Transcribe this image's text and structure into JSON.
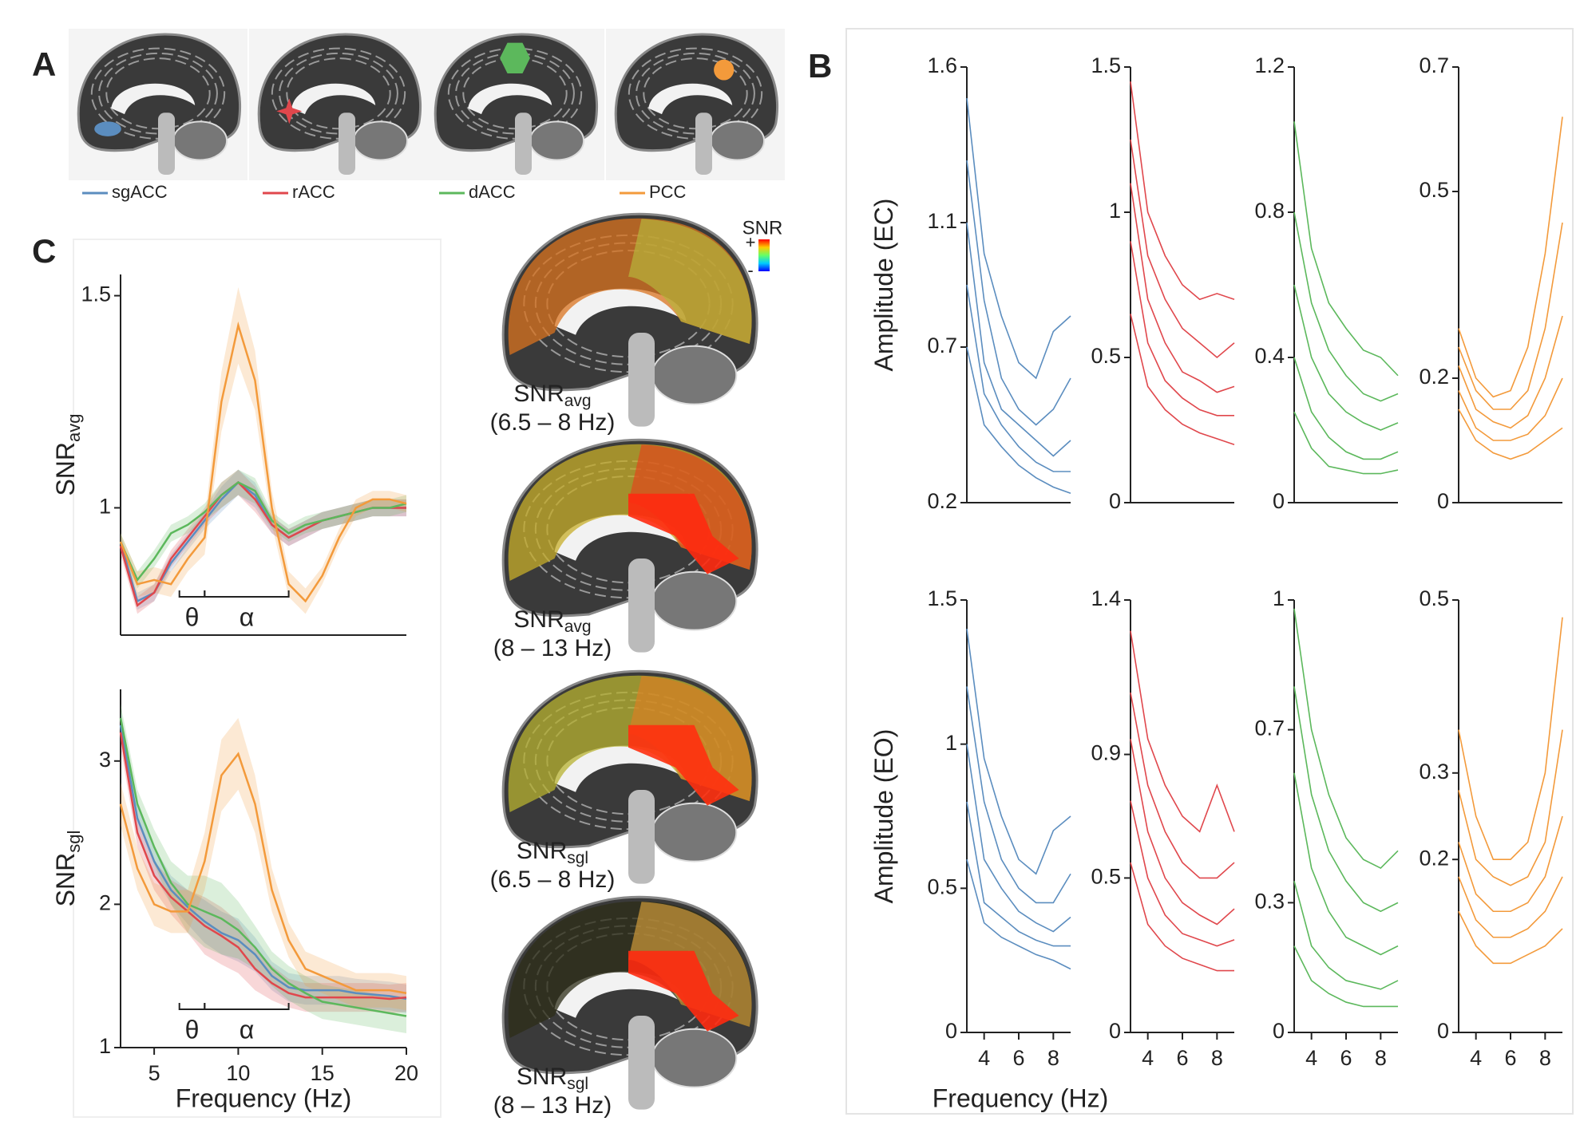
{
  "figure": {
    "panel_labels": [
      "A",
      "B",
      "C"
    ]
  },
  "panel_a": {
    "regions": [
      {
        "name": "sgACC",
        "color": "#5b8dbf"
      },
      {
        "name": "rACC",
        "color": "#e0474c"
      },
      {
        "name": "dACC",
        "color": "#5cb85c"
      },
      {
        "name": "PCC",
        "color": "#f39a3b"
      }
    ]
  },
  "brain_maps": [
    {
      "label": "SNR",
      "sub": "avg",
      "range": "(6.5 – 8 Hz)"
    },
    {
      "label": "SNR",
      "sub": "avg",
      "range": "(8 – 13 Hz)"
    },
    {
      "label": "SNR",
      "sub": "sgl",
      "range": "(6.5 – 8 Hz)"
    },
    {
      "label": "SNR",
      "sub": "sgl",
      "range": "(8 – 13 Hz)"
    }
  ],
  "colorbar": {
    "title": "SNR",
    "plus": "+",
    "minus": "-"
  },
  "chart_data": [
    {
      "type": "line",
      "ylabel": "SNR",
      "ylabel_sub": "avg",
      "x": [
        3,
        4,
        5,
        6,
        7,
        8,
        9,
        10,
        11,
        12,
        13,
        14,
        15,
        16,
        17,
        18,
        19,
        20
      ],
      "xlim": [
        3,
        20
      ],
      "ylim": [
        0.7,
        1.55
      ],
      "yticks": [
        1,
        1.5
      ],
      "brackets": [
        {
          "label": "θ",
          "from": 6.5,
          "to": 8
        },
        {
          "label": "α",
          "from": 8,
          "to": 13
        }
      ],
      "series": [
        {
          "color": "#5b8dbf",
          "values": [
            0.92,
            0.78,
            0.8,
            0.87,
            0.92,
            0.97,
            1.02,
            1.06,
            1.03,
            0.96,
            0.93,
            0.95,
            0.97,
            0.98,
            0.99,
            1.0,
            1.0,
            1.0
          ],
          "errors": [
            0.02,
            0.02,
            0.02,
            0.02,
            0.02,
            0.02,
            0.03,
            0.03,
            0.03,
            0.02,
            0.02,
            0.02,
            0.02,
            0.02,
            0.02,
            0.02,
            0.02,
            0.02
          ]
        },
        {
          "color": "#e0474c",
          "values": [
            0.91,
            0.77,
            0.8,
            0.88,
            0.93,
            0.98,
            1.03,
            1.06,
            1.02,
            0.96,
            0.93,
            0.95,
            0.97,
            0.98,
            0.99,
            1.0,
            1.0,
            1.0
          ],
          "errors": [
            0.02,
            0.02,
            0.02,
            0.02,
            0.02,
            0.02,
            0.03,
            0.03,
            0.03,
            0.02,
            0.02,
            0.02,
            0.02,
            0.02,
            0.02,
            0.02,
            0.02,
            0.02
          ]
        },
        {
          "color": "#5cb85c",
          "values": [
            0.92,
            0.83,
            0.88,
            0.94,
            0.96,
            0.99,
            1.03,
            1.06,
            1.04,
            0.97,
            0.94,
            0.96,
            0.97,
            0.98,
            0.99,
            1.0,
            1.0,
            1.01
          ],
          "errors": [
            0.02,
            0.02,
            0.02,
            0.02,
            0.02,
            0.02,
            0.03,
            0.03,
            0.03,
            0.02,
            0.02,
            0.02,
            0.02,
            0.02,
            0.02,
            0.02,
            0.02,
            0.02
          ]
        },
        {
          "color": "#f39a3b",
          "values": [
            0.92,
            0.82,
            0.83,
            0.82,
            0.88,
            0.93,
            1.25,
            1.43,
            1.3,
            1.0,
            0.82,
            0.78,
            0.84,
            0.93,
            1.0,
            1.02,
            1.02,
            1.01
          ],
          "errors": [
            0.02,
            0.03,
            0.03,
            0.03,
            0.03,
            0.04,
            0.07,
            0.09,
            0.07,
            0.04,
            0.03,
            0.03,
            0.02,
            0.02,
            0.02,
            0.02,
            0.02,
            0.02
          ]
        }
      ]
    },
    {
      "type": "line",
      "ylabel": "SNR",
      "ylabel_sub": "sgl",
      "xlabel": "Frequency (Hz)",
      "x": [
        3,
        4,
        5,
        6,
        7,
        8,
        9,
        10,
        11,
        12,
        13,
        14,
        15,
        16,
        17,
        18,
        19,
        20
      ],
      "xlim": [
        3,
        20
      ],
      "xticks": [
        5,
        10,
        15,
        20
      ],
      "ylim": [
        1,
        3.5
      ],
      "yticks": [
        1,
        2,
        3
      ],
      "brackets": [
        {
          "label": "θ",
          "from": 6.5,
          "to": 8
        },
        {
          "label": "α",
          "from": 8,
          "to": 13
        }
      ],
      "series": [
        {
          "color": "#5b8dbf",
          "values": [
            3.25,
            2.6,
            2.3,
            2.1,
            1.98,
            1.88,
            1.8,
            1.75,
            1.65,
            1.5,
            1.42,
            1.4,
            1.4,
            1.4,
            1.38,
            1.37,
            1.36,
            1.34
          ],
          "errors": [
            0.1,
            0.1,
            0.1,
            0.1,
            0.12,
            0.15,
            0.15,
            0.15,
            0.12,
            0.1,
            0.1,
            0.1,
            0.1,
            0.1,
            0.1,
            0.1,
            0.1,
            0.1
          ]
        },
        {
          "color": "#e0474c",
          "values": [
            3.2,
            2.5,
            2.2,
            2.05,
            1.95,
            1.85,
            1.78,
            1.7,
            1.55,
            1.45,
            1.38,
            1.35,
            1.35,
            1.35,
            1.35,
            1.35,
            1.34,
            1.35
          ],
          "errors": [
            0.1,
            0.1,
            0.1,
            0.12,
            0.15,
            0.2,
            0.2,
            0.18,
            0.15,
            0.12,
            0.1,
            0.1,
            0.1,
            0.1,
            0.1,
            0.1,
            0.1,
            0.1
          ]
        },
        {
          "color": "#5cb85c",
          "values": [
            3.3,
            2.7,
            2.4,
            2.15,
            2.0,
            1.95,
            1.9,
            1.82,
            1.7,
            1.55,
            1.45,
            1.38,
            1.32,
            1.3,
            1.28,
            1.26,
            1.24,
            1.22
          ],
          "errors": [
            0.1,
            0.1,
            0.12,
            0.15,
            0.2,
            0.25,
            0.25,
            0.2,
            0.15,
            0.12,
            0.12,
            0.12,
            0.12,
            0.12,
            0.12,
            0.12,
            0.12,
            0.12
          ]
        },
        {
          "color": "#f39a3b",
          "values": [
            2.7,
            2.25,
            2.0,
            1.95,
            1.95,
            2.3,
            2.9,
            3.05,
            2.7,
            2.1,
            1.75,
            1.55,
            1.5,
            1.45,
            1.4,
            1.4,
            1.4,
            1.38
          ],
          "errors": [
            0.15,
            0.15,
            0.15,
            0.15,
            0.15,
            0.2,
            0.25,
            0.25,
            0.2,
            0.15,
            0.12,
            0.12,
            0.12,
            0.12,
            0.12,
            0.12,
            0.12,
            0.12
          ]
        }
      ]
    },
    {
      "type": "line",
      "ylabel": "Amplitude (EC)",
      "x": [
        3,
        4,
        5,
        6,
        7,
        8,
        9
      ],
      "xlim": [
        3,
        9
      ],
      "ylim": [
        0.2,
        1.6
      ],
      "yticks": [
        0.2,
        0.7,
        1.1,
        1.6
      ],
      "series": [
        {
          "color": "#5b8dbf",
          "values": [
            1.5,
            1.0,
            0.8,
            0.65,
            0.6,
            0.75,
            0.8
          ]
        },
        {
          "color": "#5b8dbf",
          "values": [
            1.3,
            0.85,
            0.6,
            0.5,
            0.45,
            0.5,
            0.6
          ]
        },
        {
          "color": "#5b8dbf",
          "values": [
            1.1,
            0.65,
            0.5,
            0.45,
            0.4,
            0.35,
            0.4
          ]
        },
        {
          "color": "#5b8dbf",
          "values": [
            0.9,
            0.55,
            0.45,
            0.38,
            0.33,
            0.3,
            0.3
          ]
        },
        {
          "color": "#5b8dbf",
          "values": [
            0.7,
            0.45,
            0.38,
            0.32,
            0.28,
            0.25,
            0.23
          ]
        }
      ]
    },
    {
      "type": "line",
      "x": [
        3,
        4,
        5,
        6,
        7,
        8,
        9
      ],
      "xlim": [
        3,
        9
      ],
      "ylim": [
        0,
        1.5
      ],
      "yticks": [
        0,
        0.5,
        1,
        1.5
      ],
      "series": [
        {
          "color": "#e0474c",
          "values": [
            1.45,
            1.0,
            0.85,
            0.75,
            0.7,
            0.72,
            0.7
          ]
        },
        {
          "color": "#e0474c",
          "values": [
            1.25,
            0.85,
            0.7,
            0.6,
            0.55,
            0.5,
            0.55
          ]
        },
        {
          "color": "#e0474c",
          "values": [
            1.1,
            0.7,
            0.55,
            0.45,
            0.42,
            0.38,
            0.4
          ]
        },
        {
          "color": "#e0474c",
          "values": [
            0.9,
            0.55,
            0.42,
            0.36,
            0.32,
            0.3,
            0.3
          ]
        },
        {
          "color": "#e0474c",
          "values": [
            0.65,
            0.4,
            0.32,
            0.27,
            0.24,
            0.22,
            0.2
          ]
        }
      ]
    },
    {
      "type": "line",
      "x": [
        3,
        4,
        5,
        6,
        7,
        8,
        9
      ],
      "xlim": [
        3,
        9
      ],
      "ylim": [
        0,
        1.2
      ],
      "yticks": [
        0,
        0.4,
        0.8,
        1.2
      ],
      "series": [
        {
          "color": "#5cb85c",
          "values": [
            1.05,
            0.7,
            0.55,
            0.48,
            0.42,
            0.4,
            0.35
          ]
        },
        {
          "color": "#5cb85c",
          "values": [
            0.8,
            0.55,
            0.42,
            0.35,
            0.3,
            0.28,
            0.3
          ]
        },
        {
          "color": "#5cb85c",
          "values": [
            0.6,
            0.4,
            0.3,
            0.25,
            0.22,
            0.2,
            0.22
          ]
        },
        {
          "color": "#5cb85c",
          "values": [
            0.4,
            0.25,
            0.18,
            0.14,
            0.12,
            0.12,
            0.14
          ]
        },
        {
          "color": "#5cb85c",
          "values": [
            0.25,
            0.15,
            0.1,
            0.09,
            0.08,
            0.08,
            0.09
          ]
        }
      ]
    },
    {
      "type": "line",
      "x": [
        3,
        4,
        5,
        6,
        7,
        8,
        9
      ],
      "xlim": [
        3,
        9
      ],
      "ylim": [
        0,
        0.7
      ],
      "yticks": [
        0,
        0.2,
        0.5,
        0.7
      ],
      "series": [
        {
          "color": "#f39a3b",
          "values": [
            0.28,
            0.2,
            0.17,
            0.18,
            0.25,
            0.4,
            0.62
          ]
        },
        {
          "color": "#f39a3b",
          "values": [
            0.25,
            0.18,
            0.15,
            0.15,
            0.18,
            0.28,
            0.45
          ]
        },
        {
          "color": "#f39a3b",
          "values": [
            0.22,
            0.15,
            0.13,
            0.12,
            0.14,
            0.2,
            0.3
          ]
        },
        {
          "color": "#f39a3b",
          "values": [
            0.18,
            0.12,
            0.1,
            0.1,
            0.11,
            0.14,
            0.2
          ]
        },
        {
          "color": "#f39a3b",
          "values": [
            0.15,
            0.1,
            0.08,
            0.07,
            0.08,
            0.1,
            0.12
          ]
        }
      ]
    },
    {
      "type": "line",
      "ylabel": "Amplitude (EO)",
      "xlabel": "Frequency (Hz)",
      "x": [
        3,
        4,
        5,
        6,
        7,
        8,
        9
      ],
      "xlim": [
        3,
        9
      ],
      "xticks": [
        4,
        6,
        8
      ],
      "ylim": [
        0,
        1.5
      ],
      "yticks": [
        0,
        0.5,
        1,
        1.5
      ],
      "series": [
        {
          "color": "#5b8dbf",
          "values": [
            1.4,
            0.95,
            0.75,
            0.6,
            0.55,
            0.7,
            0.75
          ]
        },
        {
          "color": "#5b8dbf",
          "values": [
            1.2,
            0.8,
            0.6,
            0.5,
            0.45,
            0.45,
            0.55
          ]
        },
        {
          "color": "#5b8dbf",
          "values": [
            1.0,
            0.6,
            0.5,
            0.42,
            0.38,
            0.35,
            0.4
          ]
        },
        {
          "color": "#5b8dbf",
          "values": [
            0.8,
            0.45,
            0.4,
            0.35,
            0.32,
            0.3,
            0.3
          ]
        },
        {
          "color": "#5b8dbf",
          "values": [
            0.6,
            0.38,
            0.33,
            0.3,
            0.27,
            0.25,
            0.22
          ]
        }
      ]
    },
    {
      "type": "line",
      "x": [
        3,
        4,
        5,
        6,
        7,
        8,
        9
      ],
      "xlim": [
        3,
        9
      ],
      "xticks": [
        4,
        6,
        8
      ],
      "ylim": [
        0,
        1.4
      ],
      "yticks": [
        0,
        0.5,
        0.9,
        1.4
      ],
      "series": [
        {
          "color": "#e0474c",
          "values": [
            1.3,
            0.95,
            0.8,
            0.7,
            0.65,
            0.8,
            0.65
          ]
        },
        {
          "color": "#e0474c",
          "values": [
            1.1,
            0.8,
            0.65,
            0.55,
            0.5,
            0.5,
            0.55
          ]
        },
        {
          "color": "#e0474c",
          "values": [
            0.95,
            0.65,
            0.5,
            0.42,
            0.38,
            0.35,
            0.4
          ]
        },
        {
          "color": "#e0474c",
          "values": [
            0.75,
            0.5,
            0.38,
            0.32,
            0.3,
            0.28,
            0.3
          ]
        },
        {
          "color": "#e0474c",
          "values": [
            0.55,
            0.35,
            0.28,
            0.24,
            0.22,
            0.2,
            0.2
          ]
        }
      ]
    },
    {
      "type": "line",
      "x": [
        3,
        4,
        5,
        6,
        7,
        8,
        9
      ],
      "xlim": [
        3,
        9
      ],
      "xticks": [
        4,
        6,
        8
      ],
      "ylim": [
        0,
        1
      ],
      "yticks": [
        0,
        0.3,
        0.7,
        1
      ],
      "series": [
        {
          "color": "#5cb85c",
          "values": [
            0.98,
            0.7,
            0.55,
            0.45,
            0.4,
            0.38,
            0.42
          ]
        },
        {
          "color": "#5cb85c",
          "values": [
            0.8,
            0.55,
            0.42,
            0.35,
            0.3,
            0.28,
            0.3
          ]
        },
        {
          "color": "#5cb85c",
          "values": [
            0.6,
            0.38,
            0.28,
            0.22,
            0.2,
            0.18,
            0.2
          ]
        },
        {
          "color": "#5cb85c",
          "values": [
            0.35,
            0.2,
            0.15,
            0.12,
            0.11,
            0.1,
            0.12
          ]
        },
        {
          "color": "#5cb85c",
          "values": [
            0.2,
            0.12,
            0.09,
            0.07,
            0.06,
            0.06,
            0.06
          ]
        }
      ]
    },
    {
      "type": "line",
      "x": [
        3,
        4,
        5,
        6,
        7,
        8,
        9
      ],
      "xlim": [
        3,
        9
      ],
      "xticks": [
        4,
        6,
        8
      ],
      "ylim": [
        0,
        0.5
      ],
      "yticks": [
        0,
        0.2,
        0.3,
        0.5
      ],
      "series": [
        {
          "color": "#f39a3b",
          "values": [
            0.35,
            0.25,
            0.2,
            0.2,
            0.22,
            0.3,
            0.48
          ]
        },
        {
          "color": "#f39a3b",
          "values": [
            0.28,
            0.2,
            0.18,
            0.17,
            0.18,
            0.22,
            0.35
          ]
        },
        {
          "color": "#f39a3b",
          "values": [
            0.22,
            0.16,
            0.14,
            0.14,
            0.15,
            0.18,
            0.25
          ]
        },
        {
          "color": "#f39a3b",
          "values": [
            0.18,
            0.13,
            0.11,
            0.11,
            0.12,
            0.14,
            0.18
          ]
        },
        {
          "color": "#f39a3b",
          "values": [
            0.14,
            0.1,
            0.08,
            0.08,
            0.09,
            0.1,
            0.12
          ]
        }
      ]
    }
  ]
}
